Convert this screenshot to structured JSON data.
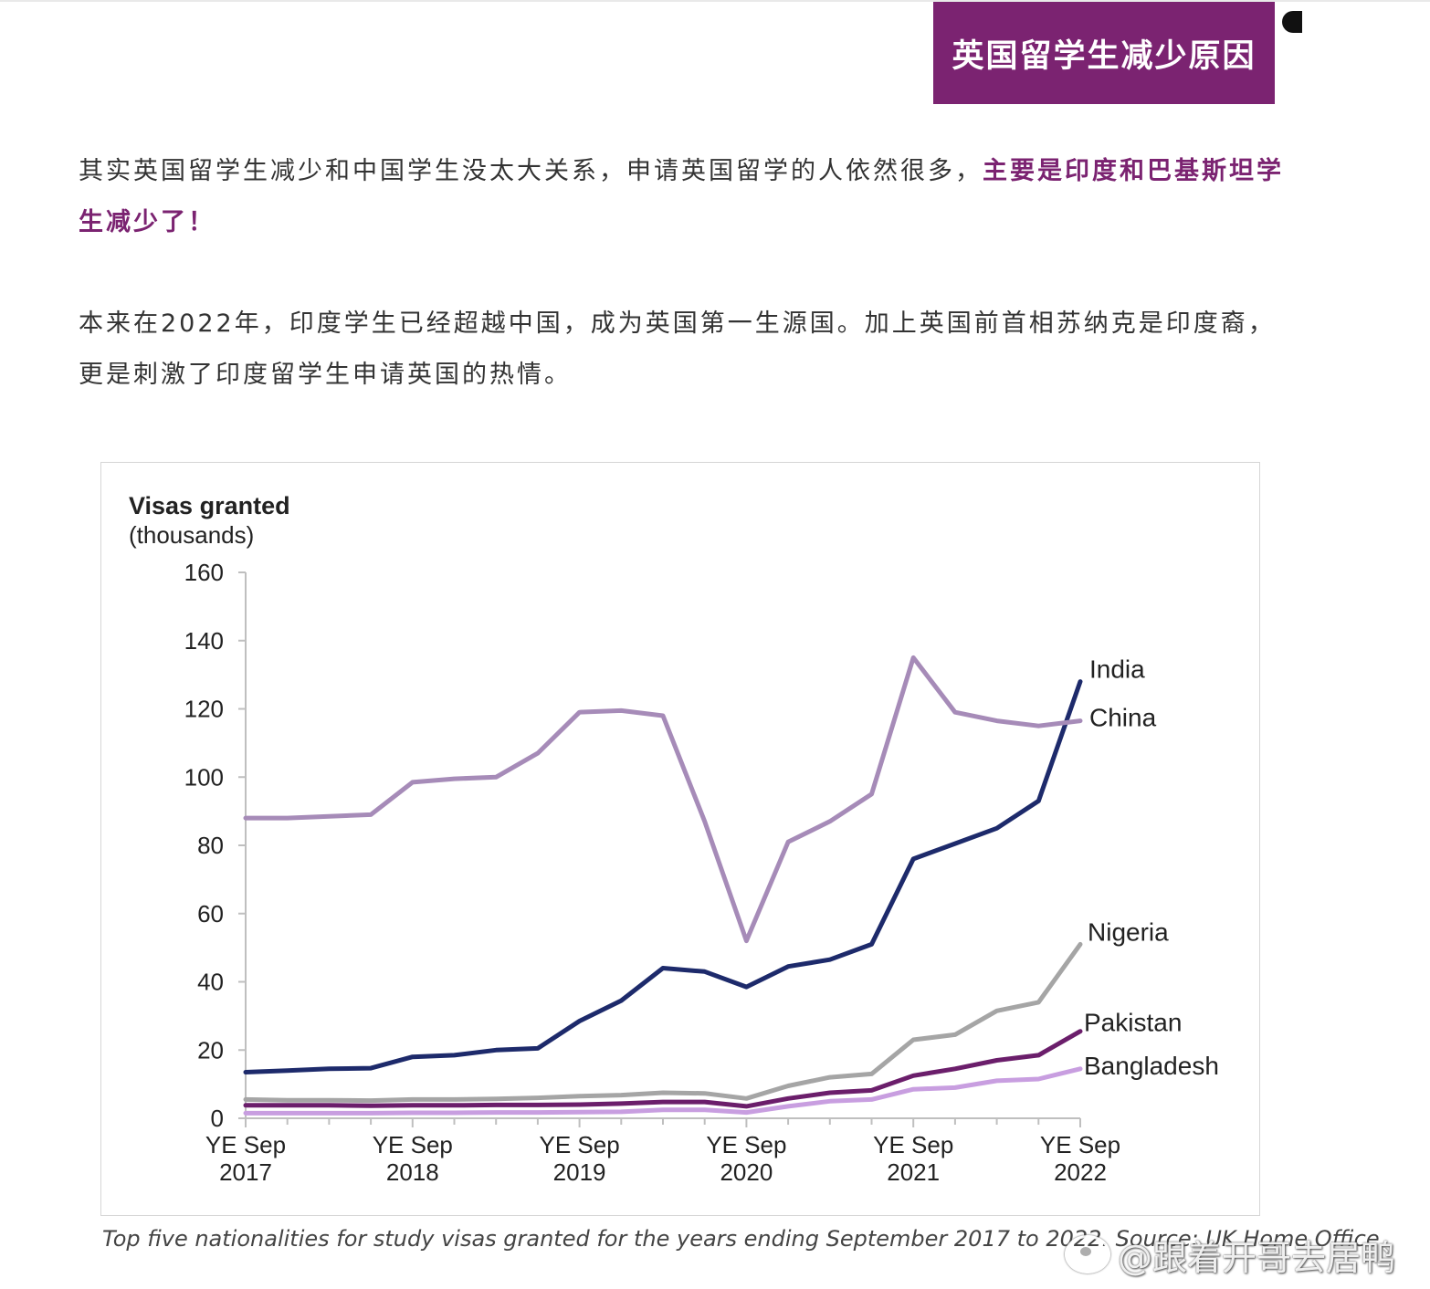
{
  "header": {
    "title": "英国留学生减少原因"
  },
  "article": {
    "para1_text": "其实英国留学生减少和中国学生没太大关系，申请英国留学的人依然很多，",
    "para1_highlight": "主要是印度和巴基斯坦学生减少了！",
    "para2_text": "本来在2022年，印度学生已经超越中国，成为英国第一生源国。加上英国前首相苏纳克是印度裔，更是刺激了印度留学生申请英国的热情。"
  },
  "chart_data": {
    "type": "line",
    "ylabel_line1": "Visas granted",
    "ylabel_line2": "(thousands)",
    "ylim": [
      0,
      160
    ],
    "yticks": [
      0,
      20,
      40,
      60,
      80,
      100,
      120,
      140,
      160
    ],
    "x_tick_labels": [
      {
        "line1": "YE Sep",
        "line2": "2017"
      },
      {
        "line1": "YE Sep",
        "line2": "2018"
      },
      {
        "line1": "YE Sep",
        "line2": "2019"
      },
      {
        "line1": "YE Sep",
        "line2": "2020"
      },
      {
        "line1": "YE Sep",
        "line2": "2021"
      },
      {
        "line1": "YE Sep",
        "line2": "2022"
      }
    ],
    "quarters_per_year": 4,
    "grid": false,
    "legend": "inline labels at line ends",
    "series": [
      {
        "name": "China",
        "color": "#a68bb8",
        "values": [
          88,
          88,
          88.5,
          89,
          98.5,
          99.5,
          100,
          107,
          119,
          119.5,
          118,
          87,
          52,
          81,
          87,
          95,
          135,
          119,
          116.5,
          115,
          116.5
        ]
      },
      {
        "name": "India",
        "color": "#1d2a6b",
        "values": [
          13.5,
          14,
          14.5,
          14.7,
          18,
          18.5,
          20,
          20.5,
          28.5,
          34.5,
          44,
          43,
          38.5,
          44.5,
          46.5,
          51,
          76,
          80.5,
          85,
          93,
          128
        ]
      },
      {
        "name": "Nigeria",
        "color": "#a5a5a5",
        "values": [
          5.5,
          5.3,
          5.3,
          5.2,
          5.5,
          5.5,
          5.7,
          6,
          6.5,
          6.8,
          7.5,
          7.3,
          5.8,
          9.5,
          12,
          13,
          23,
          24.5,
          31.5,
          34,
          51
        ]
      },
      {
        "name": "Pakistan",
        "color": "#6b1e6b",
        "values": [
          3.8,
          3.8,
          3.8,
          3.7,
          3.8,
          3.8,
          3.9,
          3.9,
          4,
          4.3,
          4.8,
          4.8,
          3.5,
          5.8,
          7.5,
          8.2,
          12.5,
          14.5,
          17,
          18.5,
          25.5
        ]
      },
      {
        "name": "Bangladesh",
        "color": "#c89ee0",
        "values": [
          1.5,
          1.5,
          1.5,
          1.5,
          1.6,
          1.6,
          1.7,
          1.7,
          1.8,
          1.9,
          2.5,
          2.5,
          1.7,
          3.5,
          5,
          5.5,
          8.5,
          9,
          11,
          11.5,
          14.5
        ]
      }
    ]
  },
  "caption": "Top five nationalities for study visas granted for the years ending September 2017 to 2022. Source: UK Home Office",
  "watermark": "@跟着开哥去居鸭"
}
